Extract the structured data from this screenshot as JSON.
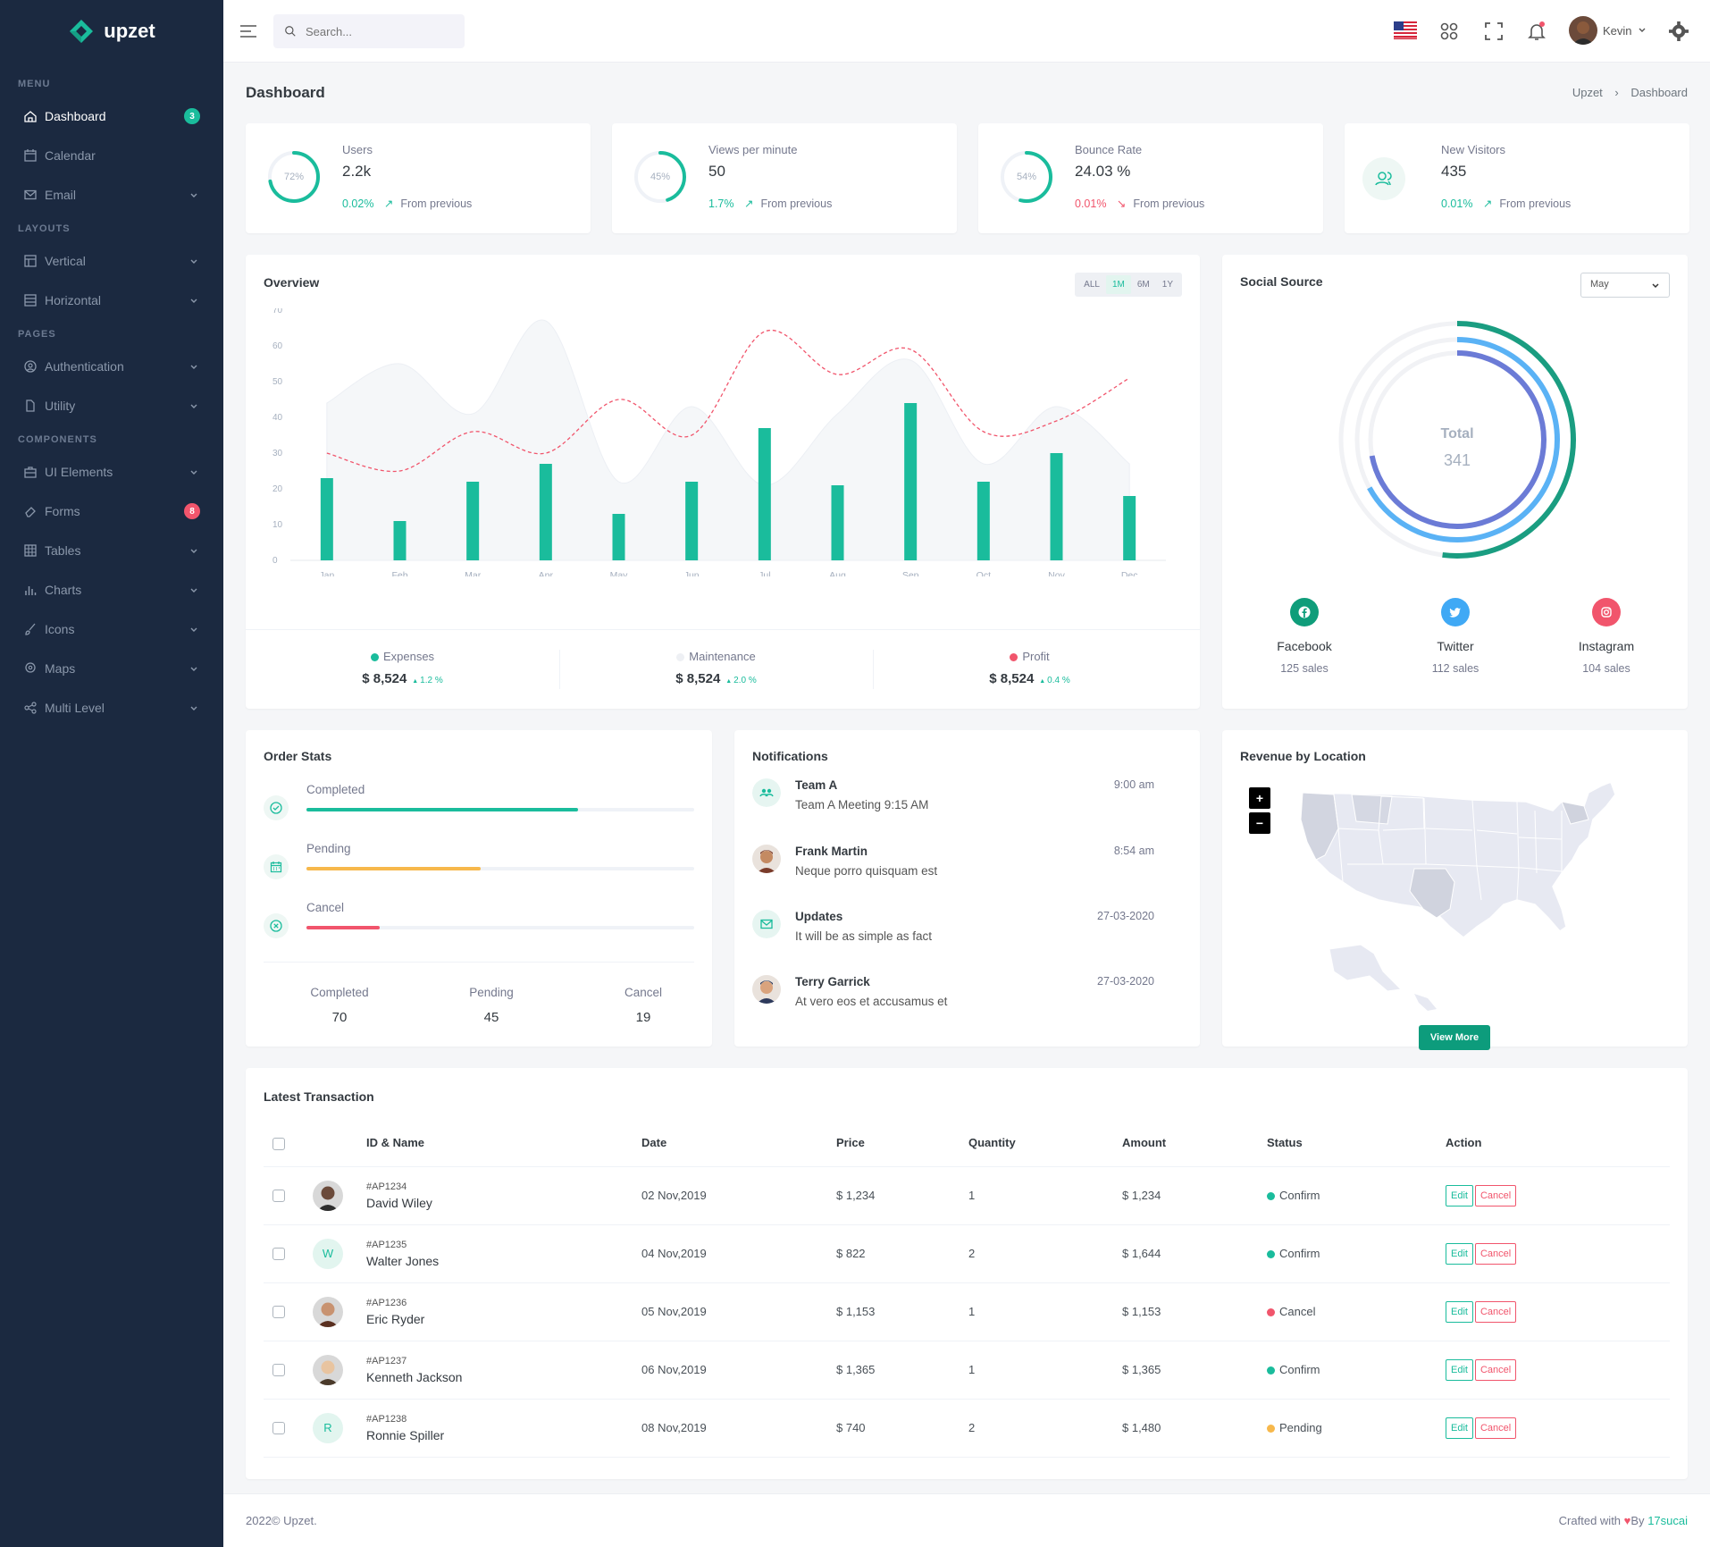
{
  "brand": {
    "name": "upzet"
  },
  "sidebar": {
    "sections": [
      {
        "title": "MENU"
      },
      {
        "title": "LAYOUTS"
      },
      {
        "title": "PAGES"
      },
      {
        "title": "COMPONENTS"
      }
    ],
    "items": [
      {
        "label": "Dashboard",
        "icon": "home-icon",
        "badge": "3",
        "badge_color": "#1abc9c"
      },
      {
        "label": "Calendar",
        "icon": "calendar-icon"
      },
      {
        "label": "Email",
        "icon": "mail-icon"
      },
      {
        "label": "Vertical",
        "icon": "layout-icon"
      },
      {
        "label": "Horizontal",
        "icon": "layout-horizontal-icon"
      },
      {
        "label": "Authentication",
        "icon": "user-circle-icon"
      },
      {
        "label": "Utility",
        "icon": "file-icon"
      },
      {
        "label": "UI Elements",
        "icon": "briefcase-icon"
      },
      {
        "label": "Forms",
        "icon": "eraser-icon",
        "badge": "8",
        "badge_color": "#f1556c"
      },
      {
        "label": "Tables",
        "icon": "table-icon"
      },
      {
        "label": "Charts",
        "icon": "bar-chart-icon"
      },
      {
        "label": "Icons",
        "icon": "brush-icon"
      },
      {
        "label": "Maps",
        "icon": "map-pin-icon"
      },
      {
        "label": "Multi Level",
        "icon": "share-icon"
      }
    ]
  },
  "topbar": {
    "search_placeholder": "Search...",
    "user_name": "Kevin"
  },
  "page": {
    "title": "Dashboard",
    "breadcrumb": [
      "Upzet",
      "Dashboard"
    ]
  },
  "stats": [
    {
      "title": "Users",
      "value": "2.2k",
      "ring": "72%",
      "ring_fraction": 0.72,
      "change": "0.02%",
      "dir": "up",
      "color": "#1abc9c",
      "from": "From previous"
    },
    {
      "title": "Views per minute",
      "value": "50",
      "ring": "45%",
      "ring_fraction": 0.45,
      "change": "1.7%",
      "dir": "up",
      "color": "#1abc9c",
      "from": "From previous"
    },
    {
      "title": "Bounce Rate",
      "value": "24.03 %",
      "ring": "54%",
      "ring_fraction": 0.54,
      "change": "0.01%",
      "dir": "down",
      "color": "#f1556c",
      "from": "From previous"
    },
    {
      "title": "New Visitors",
      "value": "435",
      "ring": "",
      "change": "0.01%",
      "dir": "up",
      "color": "#1abc9c",
      "from": "From previous"
    }
  ],
  "overview": {
    "title": "Overview",
    "ranges": [
      "ALL",
      "1M",
      "6M",
      "1Y"
    ],
    "active_range": "1M",
    "legend": [
      {
        "name": "Expenses",
        "value": "$ 8,524",
        "change": "1.2 %",
        "color": "#1abc9c"
      },
      {
        "name": "Maintenance",
        "value": "$ 8,524",
        "change": "2.0 %",
        "color": "#eef0f4"
      },
      {
        "name": "Profit",
        "value": "$ 8,524",
        "change": "0.4 %",
        "color": "#f1556c"
      }
    ]
  },
  "chart_data": {
    "type": "bar",
    "categories": [
      "Jan",
      "Feb",
      "Mar",
      "Apr",
      "May",
      "Jun",
      "Jul",
      "Aug",
      "Sep",
      "Oct",
      "Nov",
      "Dec"
    ],
    "ylim": [
      0,
      70
    ],
    "yticks": [
      0,
      10,
      20,
      30,
      40,
      50,
      60,
      70
    ],
    "series": [
      {
        "name": "Expenses",
        "type": "bar",
        "color": "#1abc9c",
        "values": [
          23,
          11,
          22,
          27,
          13,
          22,
          37,
          21,
          44,
          22,
          30,
          18
        ]
      },
      {
        "name": "Maintenance",
        "type": "area",
        "color": "#f1f3f7",
        "values": [
          44,
          55,
          41,
          67,
          22,
          43,
          21,
          41,
          56,
          27,
          43,
          27
        ]
      },
      {
        "name": "Profit",
        "type": "line",
        "color": "#f1556c",
        "values": [
          30,
          25,
          36,
          30,
          45,
          35,
          64,
          52,
          59,
          36,
          39,
          51
        ]
      }
    ]
  },
  "social": {
    "title": "Social Source",
    "month": "May",
    "total_label": "Total",
    "total": "341",
    "rings": [
      {
        "fraction": 0.52,
        "color": "#1a9d81"
      },
      {
        "fraction": 0.67,
        "color": "#5ab2f5"
      },
      {
        "fraction": 0.72,
        "color": "#6b7bd6"
      }
    ],
    "items": [
      {
        "name": "Facebook",
        "sales": "125 sales",
        "color": "#0f9d7a",
        "icon": "facebook-icon"
      },
      {
        "name": "Twitter",
        "sales": "112 sales",
        "color": "#40a9f5",
        "icon": "twitter-icon"
      },
      {
        "name": "Instagram",
        "sales": "104 sales",
        "color": "#f1556c",
        "icon": "instagram-icon"
      }
    ]
  },
  "order_stats": {
    "title": "Order Stats",
    "rows": [
      {
        "label": "Completed",
        "pct": 70,
        "color": "#1abc9c",
        "icon": "check-circle-icon"
      },
      {
        "label": "Pending",
        "pct": 45,
        "color": "#f7b84b",
        "icon": "calendar-icon"
      },
      {
        "label": "Cancel",
        "pct": 19,
        "color": "#f1556c",
        "icon": "x-circle-icon"
      }
    ],
    "summary": [
      {
        "label": "Completed",
        "value": "70"
      },
      {
        "label": "Pending",
        "value": "45"
      },
      {
        "label": "Cancel",
        "value": "19"
      }
    ]
  },
  "notifications": {
    "title": "Notifications",
    "items": [
      {
        "name": "Team A",
        "msg": "Team A Meeting 9:15 AM",
        "date": "9:00 am",
        "avatar": "team-icon"
      },
      {
        "name": "Frank Martin",
        "msg": "Neque porro quisquam est",
        "date": "8:54 am",
        "avatar": "avatar-photo"
      },
      {
        "name": "Updates",
        "msg": "It will be as simple as fact",
        "date": "27-03-2020",
        "avatar": "mail-icon"
      },
      {
        "name": "Terry Garrick",
        "msg": "At vero eos et accusamus et",
        "date": "27-03-2020",
        "avatar": "avatar-photo"
      }
    ]
  },
  "revenue": {
    "title": "Revenue by Location",
    "zoom_in": "+",
    "zoom_out": "−",
    "button": "View More"
  },
  "transactions": {
    "title": "Latest Transaction",
    "columns": [
      "ID & Name",
      "Date",
      "Price",
      "Quantity",
      "Amount",
      "Status",
      "Action"
    ],
    "rows": [
      {
        "id": "#AP1234",
        "name": "David Wiley",
        "avatar": "photo",
        "initial": "",
        "date": "02 Nov,2019",
        "price": "$ 1,234",
        "qty": "1",
        "amount": "$ 1,234",
        "status": "Confirm",
        "status_color": "#1abc9c"
      },
      {
        "id": "#AP1235",
        "name": "Walter Jones",
        "avatar": "initial",
        "initial": "W",
        "date": "04 Nov,2019",
        "price": "$ 822",
        "qty": "2",
        "amount": "$ 1,644",
        "status": "Confirm",
        "status_color": "#1abc9c"
      },
      {
        "id": "#AP1236",
        "name": "Eric Ryder",
        "avatar": "photo",
        "initial": "",
        "date": "05 Nov,2019",
        "price": "$ 1,153",
        "qty": "1",
        "amount": "$ 1,153",
        "status": "Cancel",
        "status_color": "#f1556c"
      },
      {
        "id": "#AP1237",
        "name": "Kenneth Jackson",
        "avatar": "photo",
        "initial": "",
        "date": "06 Nov,2019",
        "price": "$ 1,365",
        "qty": "1",
        "amount": "$ 1,365",
        "status": "Confirm",
        "status_color": "#1abc9c"
      },
      {
        "id": "#AP1238",
        "name": "Ronnie Spiller",
        "avatar": "initial",
        "initial": "R",
        "date": "08 Nov,2019",
        "price": "$ 740",
        "qty": "2",
        "amount": "$ 1,480",
        "status": "Pending",
        "status_color": "#f7b84b"
      }
    ],
    "edit_label": "Edit",
    "cancel_label": "Cancel"
  },
  "footer": {
    "left": "2022© Upzet.",
    "right_prefix": "Crafted with",
    "right_by": "By",
    "right_author": "17sucai"
  }
}
